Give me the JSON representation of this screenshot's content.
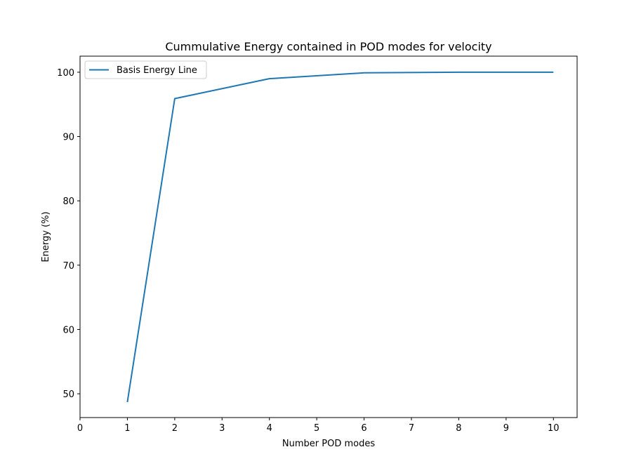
{
  "chart_data": {
    "type": "line",
    "title": "Cummulative Energy contained in POD modes for velocity",
    "xlabel": "Number POD modes",
    "ylabel": "Energy (%)",
    "xlim": [
      0,
      10.5
    ],
    "ylim": [
      46.3,
      102.5
    ],
    "xticks": [
      "0",
      "1",
      "2",
      "3",
      "4",
      "5",
      "6",
      "7",
      "8",
      "9",
      "10"
    ],
    "yticks": [
      "50",
      "60",
      "70",
      "80",
      "90",
      "100"
    ],
    "grid": false,
    "legend_position": "upper-left",
    "series": [
      {
        "name": "Basis Energy Line",
        "color": "#1f77b4",
        "x": [
          1,
          2,
          4,
          6,
          8,
          10
        ],
        "y": [
          48.7,
          95.9,
          99.0,
          99.9,
          100.0,
          100.0
        ]
      }
    ]
  }
}
